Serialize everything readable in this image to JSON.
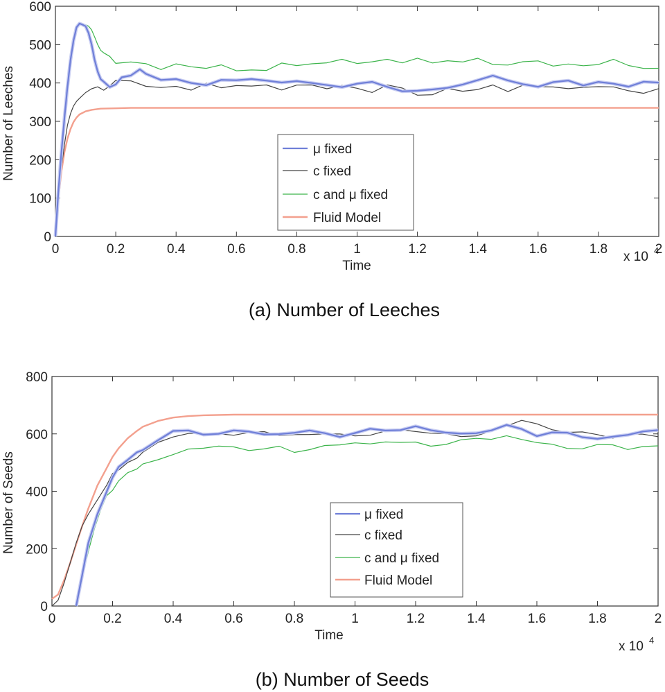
{
  "chart_data": [
    {
      "type": "line",
      "panel": "a",
      "caption": "(a)  Number of Leeches",
      "xlabel": "Time",
      "ylabel": "Number of Leeches",
      "x_multiplier": "x 10",
      "x_multiplier_exp": "4",
      "xlim": [
        0,
        2
      ],
      "ylim": [
        0,
        600
      ],
      "xticks": [
        0,
        0.2,
        0.4,
        0.6,
        0.8,
        1,
        1.2,
        1.4,
        1.6,
        1.8,
        2
      ],
      "xtick_labels": [
        "0",
        "0.2",
        "0.4",
        "0.6",
        "0.8",
        "1",
        "1.2",
        "1.4",
        "1.6",
        "1.8",
        "2"
      ],
      "yticks": [
        0,
        100,
        200,
        300,
        400,
        500,
        600
      ],
      "ytick_labels": [
        "0",
        "100",
        "200",
        "300",
        "400",
        "500",
        "600"
      ],
      "legend_position": "center",
      "series": [
        {
          "name": "μ fixed",
          "color": "#6f7fd8",
          "width": 2.2,
          "halo": true,
          "x": [
            0,
            0.01,
            0.02,
            0.03,
            0.04,
            0.05,
            0.06,
            0.07,
            0.08,
            0.09,
            0.1,
            0.11,
            0.12,
            0.13,
            0.14,
            0.15,
            0.16,
            0.18,
            0.2,
            0.22,
            0.25,
            0.28,
            0.3,
            0.35,
            0.4,
            0.45,
            0.5,
            0.55,
            0.6,
            0.65,
            0.7,
            0.75,
            0.8,
            0.85,
            0.9,
            0.95,
            1,
            1.05,
            1.1,
            1.15,
            1.2,
            1.25,
            1.3,
            1.35,
            1.4,
            1.45,
            1.5,
            1.55,
            1.6,
            1.65,
            1.7,
            1.75,
            1.8,
            1.85,
            1.9,
            1.95,
            2
          ],
          "y": [
            0,
            120,
            220,
            310,
            390,
            460,
            510,
            545,
            555,
            552,
            548,
            530,
            500,
            460,
            430,
            410,
            400,
            392,
            398,
            410,
            420,
            430,
            425,
            410,
            405,
            398,
            402,
            408,
            400,
            412,
            410,
            400,
            405,
            398,
            392,
            395,
            400,
            395,
            390,
            385,
            378,
            380,
            388,
            395,
            410,
            422,
            400,
            395,
            398,
            402,
            400,
            395,
            405,
            398,
            392,
            400,
            398
          ]
        },
        {
          "name": "c fixed",
          "color": "#444444",
          "width": 1.2,
          "halo": false,
          "x": [
            0,
            0.01,
            0.02,
            0.03,
            0.04,
            0.05,
            0.06,
            0.07,
            0.08,
            0.1,
            0.12,
            0.14,
            0.16,
            0.18,
            0.2,
            0.25,
            0.3,
            0.35,
            0.4,
            0.45,
            0.5,
            0.55,
            0.6,
            0.65,
            0.7,
            0.75,
            0.8,
            0.85,
            0.9,
            0.95,
            1,
            1.05,
            1.1,
            1.15,
            1.2,
            1.25,
            1.3,
            1.35,
            1.4,
            1.45,
            1.5,
            1.55,
            1.6,
            1.65,
            1.7,
            1.75,
            1.8,
            1.85,
            1.9,
            1.95,
            2
          ],
          "y": [
            0,
            100,
            180,
            240,
            290,
            320,
            340,
            352,
            360,
            375,
            385,
            390,
            388,
            392,
            400,
            405,
            395,
            388,
            392,
            380,
            395,
            392,
            398,
            385,
            392,
            388,
            395,
            392,
            385,
            392,
            388,
            380,
            390,
            382,
            375,
            372,
            380,
            378,
            385,
            395,
            380,
            392,
            385,
            395,
            390,
            382,
            388,
            395,
            380,
            372,
            385
          ]
        },
        {
          "name": "c and  μ fixed",
          "color": "#3cb44b",
          "width": 1.2,
          "halo": false,
          "x": [
            0,
            0.01,
            0.02,
            0.03,
            0.04,
            0.05,
            0.06,
            0.07,
            0.08,
            0.09,
            0.1,
            0.11,
            0.12,
            0.13,
            0.14,
            0.15,
            0.16,
            0.18,
            0.2,
            0.25,
            0.3,
            0.35,
            0.4,
            0.45,
            0.5,
            0.55,
            0.6,
            0.65,
            0.7,
            0.75,
            0.8,
            0.85,
            0.9,
            0.95,
            1,
            1.05,
            1.1,
            1.15,
            1.2,
            1.25,
            1.3,
            1.35,
            1.4,
            1.45,
            1.5,
            1.55,
            1.6,
            1.65,
            1.7,
            1.75,
            1.8,
            1.85,
            1.9,
            1.95,
            2
          ],
          "y": [
            0,
            125,
            225,
            315,
            395,
            462,
            512,
            545,
            552,
            550,
            552,
            548,
            538,
            520,
            500,
            485,
            475,
            465,
            458,
            450,
            445,
            440,
            452,
            440,
            438,
            445,
            432,
            440,
            430,
            445,
            450,
            455,
            448,
            460,
            452,
            455,
            465,
            452,
            458,
            455,
            465,
            450,
            460,
            452,
            448,
            455,
            458,
            440,
            450,
            452,
            445,
            455,
            450,
            442,
            435
          ]
        },
        {
          "name": "Fluid Model",
          "color": "#f3a08e",
          "width": 2.4,
          "halo": false,
          "x": [
            0,
            0.01,
            0.02,
            0.03,
            0.04,
            0.05,
            0.06,
            0.07,
            0.08,
            0.1,
            0.12,
            0.15,
            0.2,
            0.25,
            0.3,
            0.4,
            0.5,
            0.7,
            1,
            1.5,
            2
          ],
          "y": [
            0,
            100,
            170,
            220,
            255,
            280,
            298,
            310,
            318,
            326,
            330,
            333,
            334,
            335,
            335,
            335,
            335,
            335,
            335,
            335,
            335
          ]
        }
      ]
    },
    {
      "type": "line",
      "panel": "b",
      "caption": "(b)  Number of Seeds",
      "xlabel": "Time",
      "ylabel": "Number of Seeds",
      "x_multiplier": "x 10",
      "x_multiplier_exp": "4",
      "xlim": [
        0,
        2
      ],
      "ylim": [
        0,
        800
      ],
      "xticks": [
        0,
        0.2,
        0.4,
        0.6,
        0.8,
        1,
        1.2,
        1.4,
        1.6,
        1.8,
        2
      ],
      "xtick_labels": [
        "0",
        "0.2",
        "0.4",
        "0.6",
        "0.8",
        "1",
        "1.2",
        "1.4",
        "1.6",
        "1.8",
        "2"
      ],
      "yticks": [
        0,
        200,
        400,
        600,
        800
      ],
      "ytick_labels": [
        "0",
        "200",
        "400",
        "600",
        "800"
      ],
      "legend_position": "center",
      "series": [
        {
          "name": "μ fixed",
          "color": "#6f7fd8",
          "width": 2.2,
          "halo": true,
          "x": [
            0.08,
            0.1,
            0.12,
            0.15,
            0.18,
            0.2,
            0.22,
            0.25,
            0.28,
            0.3,
            0.35,
            0.4,
            0.45,
            0.5,
            0.55,
            0.6,
            0.65,
            0.7,
            0.75,
            0.8,
            0.85,
            0.9,
            0.95,
            1,
            1.05,
            1.1,
            1.15,
            1.2,
            1.25,
            1.3,
            1.35,
            1.4,
            1.45,
            1.5,
            1.55,
            1.6,
            1.65,
            1.7,
            1.75,
            1.8,
            1.85,
            1.9,
            1.95,
            2
          ],
          "y": [
            0,
            110,
            220,
            320,
            400,
            450,
            480,
            510,
            530,
            545,
            580,
            605,
            610,
            605,
            600,
            605,
            610,
            602,
            598,
            604,
            610,
            600,
            595,
            605,
            610,
            612,
            620,
            625,
            610,
            605,
            600,
            605,
            615,
            625,
            615,
            600,
            605,
            598,
            590,
            585,
            590,
            598,
            605,
            610
          ]
        },
        {
          "name": "c fixed",
          "color": "#444444",
          "width": 1.2,
          "halo": false,
          "x": [
            0,
            0.02,
            0.04,
            0.06,
            0.08,
            0.1,
            0.12,
            0.15,
            0.18,
            0.2,
            0.22,
            0.25,
            0.28,
            0.3,
            0.35,
            0.4,
            0.45,
            0.5,
            0.55,
            0.6,
            0.65,
            0.7,
            0.75,
            0.8,
            0.85,
            0.9,
            0.95,
            1,
            1.05,
            1.1,
            1.15,
            1.2,
            1.25,
            1.3,
            1.35,
            1.4,
            1.45,
            1.5,
            1.55,
            1.6,
            1.65,
            1.7,
            1.75,
            1.8,
            1.85,
            1.9,
            1.95,
            2
          ],
          "y": [
            0,
            20,
            80,
            150,
            220,
            280,
            320,
            370,
            420,
            455,
            480,
            500,
            520,
            540,
            570,
            590,
            600,
            598,
            605,
            600,
            598,
            605,
            600,
            598,
            595,
            600,
            598,
            595,
            600,
            605,
            610,
            615,
            605,
            595,
            590,
            595,
            610,
            630,
            645,
            630,
            620,
            610,
            600,
            595,
            590,
            600,
            598,
            590
          ]
        },
        {
          "name": "c and  μ fixed",
          "color": "#3cb44b",
          "width": 1.2,
          "halo": false,
          "x": [
            0.08,
            0.1,
            0.12,
            0.14,
            0.16,
            0.18,
            0.2,
            0.22,
            0.25,
            0.28,
            0.3,
            0.35,
            0.4,
            0.45,
            0.5,
            0.55,
            0.6,
            0.65,
            0.7,
            0.75,
            0.8,
            0.85,
            0.9,
            0.95,
            1,
            1.05,
            1.1,
            1.15,
            1.2,
            1.25,
            1.3,
            1.35,
            1.4,
            1.45,
            1.5,
            1.55,
            1.6,
            1.65,
            1.7,
            1.75,
            1.8,
            1.85,
            1.9,
            1.95,
            2
          ],
          "y": [
            0,
            100,
            190,
            270,
            330,
            380,
            410,
            435,
            460,
            478,
            490,
            515,
            530,
            545,
            550,
            555,
            555,
            548,
            545,
            550,
            540,
            550,
            555,
            560,
            570,
            565,
            575,
            570,
            565,
            560,
            570,
            575,
            580,
            585,
            595,
            580,
            570,
            560,
            550,
            555,
            560,
            555,
            550,
            560,
            555
          ]
        },
        {
          "name": "Fluid Model",
          "color": "#f3a08e",
          "width": 2.4,
          "halo": false,
          "x": [
            0,
            0.02,
            0.04,
            0.06,
            0.08,
            0.1,
            0.12,
            0.15,
            0.18,
            0.2,
            0.22,
            0.25,
            0.28,
            0.3,
            0.35,
            0.4,
            0.45,
            0.5,
            0.6,
            0.8,
            1,
            1.5,
            2
          ],
          "y": [
            25,
            40,
            90,
            150,
            215,
            280,
            340,
            420,
            480,
            520,
            550,
            585,
            610,
            625,
            645,
            657,
            662,
            665,
            667,
            667,
            667,
            667,
            667
          ]
        }
      ]
    }
  ]
}
